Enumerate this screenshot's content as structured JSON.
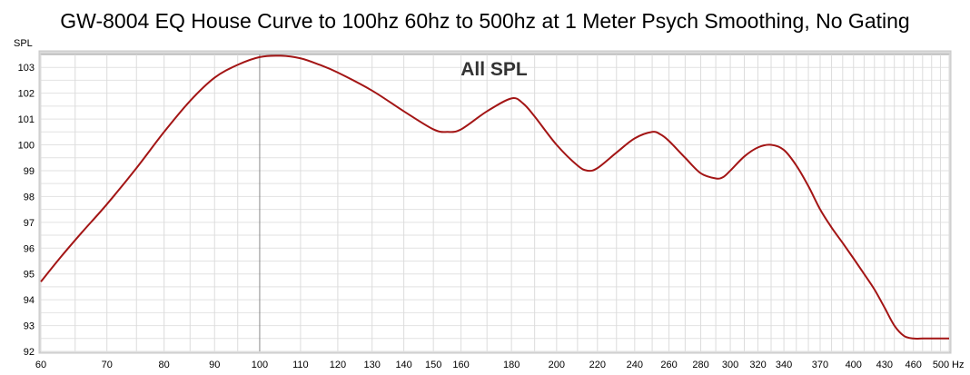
{
  "chart_data": {
    "type": "line",
    "title": "GW-8004 EQ House Curve to 100hz 60hz to 500hz at 1 Meter Psych Smoothing, No Gating",
    "inner_title": "All SPL",
    "ylabel": "SPL",
    "xunit": "Hz",
    "x_scale": "log",
    "xlim": [
      60,
      500
    ],
    "ylim": [
      92,
      103.5
    ],
    "grid": true,
    "x_gridlines": [
      60,
      65,
      70,
      75,
      80,
      85,
      90,
      95,
      100,
      110,
      120,
      130,
      140,
      150,
      160,
      170,
      180,
      190,
      200,
      210,
      220,
      230,
      240,
      250,
      260,
      270,
      280,
      290,
      300,
      310,
      320,
      330,
      340,
      350,
      360,
      370,
      380,
      390,
      400,
      410,
      420,
      430,
      440,
      450,
      460,
      470,
      480,
      490,
      500
    ],
    "x_major_gridlines": [
      100
    ],
    "x_ticks": [
      {
        "value": 60,
        "label": "60"
      },
      {
        "value": 70,
        "label": "70"
      },
      {
        "value": 80,
        "label": "80"
      },
      {
        "value": 90,
        "label": "90"
      },
      {
        "value": 100,
        "label": "100"
      },
      {
        "value": 110,
        "label": "110"
      },
      {
        "value": 120,
        "label": "120"
      },
      {
        "value": 130,
        "label": "130"
      },
      {
        "value": 140,
        "label": "140"
      },
      {
        "value": 150,
        "label": "150"
      },
      {
        "value": 160,
        "label": "160"
      },
      {
        "value": 180,
        "label": "180"
      },
      {
        "value": 200,
        "label": "200"
      },
      {
        "value": 220,
        "label": "220"
      },
      {
        "value": 240,
        "label": "240"
      },
      {
        "value": 260,
        "label": "260"
      },
      {
        "value": 280,
        "label": "280"
      },
      {
        "value": 300,
        "label": "300"
      },
      {
        "value": 320,
        "label": "320"
      },
      {
        "value": 340,
        "label": "340"
      },
      {
        "value": 370,
        "label": "370"
      },
      {
        "value": 400,
        "label": "400"
      },
      {
        "value": 430,
        "label": "430"
      },
      {
        "value": 460,
        "label": "460"
      },
      {
        "value": 500,
        "label": "500"
      }
    ],
    "y_gridlines": [
      92,
      92.5,
      93,
      93.5,
      94,
      94.5,
      95,
      95.5,
      96,
      96.5,
      97,
      97.5,
      98,
      98.5,
      99,
      99.5,
      100,
      100.5,
      101,
      101.5,
      102,
      102.5,
      103
    ],
    "y_ticks": [
      {
        "value": 92,
        "label": "92"
      },
      {
        "value": 93,
        "label": "93"
      },
      {
        "value": 94,
        "label": "94"
      },
      {
        "value": 95,
        "label": "95"
      },
      {
        "value": 96,
        "label": "96"
      },
      {
        "value": 97,
        "label": "97"
      },
      {
        "value": 98,
        "label": "98"
      },
      {
        "value": 99,
        "label": "99"
      },
      {
        "value": 100,
        "label": "100"
      },
      {
        "value": 101,
        "label": "101"
      },
      {
        "value": 102,
        "label": "102"
      },
      {
        "value": 103,
        "label": "103"
      }
    ],
    "series": [
      {
        "color": "#a31515",
        "x": [
          60,
          63,
          66,
          70,
          75,
          80,
          85,
          90,
          95,
          100,
          105,
          110,
          115,
          120,
          130,
          140,
          150,
          155,
          160,
          170,
          180,
          185,
          190,
          200,
          210,
          215,
          220,
          230,
          240,
          250,
          255,
          260,
          270,
          280,
          290,
          295,
          300,
          310,
          320,
          330,
          340,
          350,
          360,
          370,
          380,
          390,
          400,
          410,
          420,
          430,
          440,
          450,
          460,
          470,
          480,
          490,
          500
        ],
        "y": [
          94.7,
          95.7,
          96.6,
          97.7,
          99.1,
          100.5,
          101.7,
          102.6,
          103.1,
          103.4,
          103.45,
          103.35,
          103.1,
          102.8,
          102.1,
          101.3,
          100.6,
          100.5,
          100.6,
          101.3,
          101.8,
          101.6,
          101.1,
          100.0,
          99.2,
          99.0,
          99.1,
          99.7,
          100.25,
          100.5,
          100.4,
          100.15,
          99.5,
          98.9,
          98.7,
          98.75,
          99.0,
          99.55,
          99.9,
          100.0,
          99.8,
          99.2,
          98.4,
          97.5,
          96.8,
          96.2,
          95.6,
          95.0,
          94.4,
          93.7,
          93.0,
          92.6,
          92.5,
          92.5,
          92.5,
          92.5,
          92.5
        ]
      }
    ]
  }
}
